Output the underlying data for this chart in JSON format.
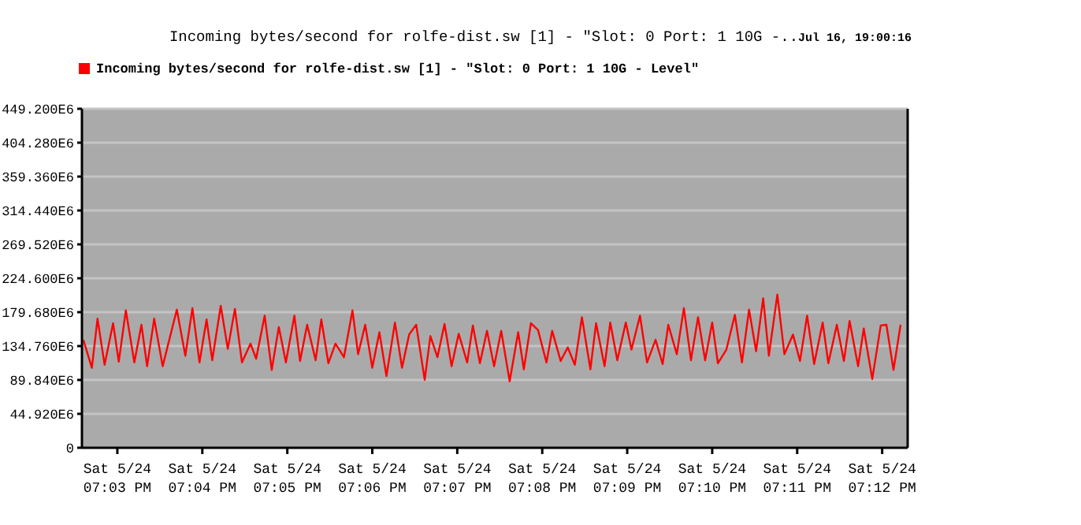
{
  "chart_data": {
    "type": "line",
    "title": "Incoming bytes/second for rolfe-dist.sw [1] - \"Slot: 0 Port: 1 10G -..",
    "annotations": [
      "Jul 16, 19:00:16"
    ],
    "x": [
      "--05-24T19:02:36",
      "--05-24T19:02:42",
      "--05-24T19:02:46",
      "--05-24T19:02:51",
      "--05-24T19:02:57",
      "--05-24T19:03:01",
      "--05-24T19:03:06",
      "--05-24T19:03:12",
      "--05-24T19:03:17",
      "--05-24T19:03:21",
      "--05-24T19:03:26",
      "--05-24T19:03:32",
      "--05-24T19:03:42",
      "--05-24T19:03:48",
      "--05-24T19:03:53",
      "--05-24T19:03:58",
      "--05-24T19:04:03",
      "--05-24T19:04:07",
      "--05-24T19:04:13",
      "--05-24T19:04:18",
      "--05-24T19:04:23",
      "--05-24T19:04:28",
      "--05-24T19:04:34",
      "--05-24T19:04:38",
      "--05-24T19:04:44",
      "--05-24T19:04:49",
      "--05-24T19:04:54",
      "--05-24T19:04:59",
      "--05-24T19:05:05",
      "--05-24T19:05:09",
      "--05-24T19:05:14",
      "--05-24T19:05:20",
      "--05-24T19:05:24",
      "--05-24T19:05:29",
      "--05-24T19:05:34",
      "--05-24T19:05:40",
      "--05-24T19:05:46",
      "--05-24T19:05:50",
      "--05-24T19:05:55",
      "--05-24T19:06:00",
      "--05-24T19:06:05",
      "--05-24T19:06:10",
      "--05-24T19:06:16",
      "--05-24T19:06:21",
      "--05-24T19:06:26",
      "--05-24T19:06:31",
      "--05-24T19:06:37",
      "--05-24T19:06:41",
      "--05-24T19:06:46",
      "--05-24T19:06:51",
      "--05-24T19:06:56",
      "--05-24T19:07:01",
      "--05-24T19:07:07",
      "--05-24T19:07:11",
      "--05-24T19:07:16",
      "--05-24T19:07:21",
      "--05-24T19:07:26",
      "--05-24T19:07:31",
      "--05-24T19:07:37",
      "--05-24T19:07:43",
      "--05-24T19:07:47",
      "--05-24T19:07:52",
      "--05-24T19:07:57",
      "--05-24T19:08:03",
      "--05-24T19:08:07",
      "--05-24T19:08:13",
      "--05-24T19:08:18",
      "--05-24T19:08:23",
      "--05-24T19:08:28",
      "--05-24T19:08:34",
      "--05-24T19:08:38",
      "--05-24T19:08:44",
      "--05-24T19:08:48",
      "--05-24T19:08:53",
      "--05-24T19:08:59",
      "--05-24T19:09:03",
      "--05-24T19:09:09",
      "--05-24T19:09:14",
      "--05-24T19:09:20",
      "--05-24T19:09:25",
      "--05-24T19:09:29",
      "--05-24T19:09:35",
      "--05-24T19:09:40",
      "--05-24T19:09:45",
      "--05-24T19:09:50",
      "--05-24T19:09:55",
      "--05-24T19:10:00",
      "--05-24T19:10:04",
      "--05-24T19:10:10",
      "--05-24T19:10:16",
      "--05-24T19:10:21",
      "--05-24T19:10:26",
      "--05-24T19:10:31",
      "--05-24T19:10:36",
      "--05-24T19:10:40",
      "--05-24T19:10:46",
      "--05-24T19:10:51",
      "--05-24T19:10:57",
      "--05-24T19:11:02",
      "--05-24T19:11:07",
      "--05-24T19:11:12",
      "--05-24T19:11:18",
      "--05-24T19:11:22",
      "--05-24T19:11:28",
      "--05-24T19:11:33",
      "--05-24T19:11:37",
      "--05-24T19:11:43",
      "--05-24T19:11:47",
      "--05-24T19:11:53",
      "--05-24T19:11:59",
      "--05-24T19:12:03",
      "--05-24T19:12:08",
      "--05-24T19:12:13"
    ],
    "series": [
      {
        "name": "Incoming bytes/second for rolfe-dist.sw [1] - \"Slot: 0 Port: 1 10G - Level\"",
        "color": "#ff0000",
        "values": [
          143000000,
          106000000,
          171000000,
          110000000,
          165000000,
          114000000,
          182000000,
          113000000,
          163000000,
          108000000,
          171000000,
          108000000,
          183000000,
          122000000,
          185000000,
          113000000,
          170000000,
          116000000,
          188000000,
          131000000,
          184000000,
          113000000,
          138000000,
          118000000,
          175000000,
          103000000,
          160000000,
          113000000,
          175000000,
          115000000,
          163000000,
          116000000,
          170000000,
          112000000,
          138000000,
          120000000,
          182000000,
          124000000,
          163000000,
          106000000,
          153000000,
          95000000,
          166000000,
          106000000,
          150000000,
          163000000,
          90000000,
          148000000,
          120000000,
          164000000,
          108000000,
          151000000,
          113000000,
          162000000,
          112000000,
          155000000,
          108000000,
          155000000,
          88000000,
          153000000,
          104000000,
          165000000,
          156000000,
          113000000,
          155000000,
          115000000,
          133000000,
          110000000,
          173000000,
          104000000,
          165000000,
          108000000,
          166000000,
          116000000,
          166000000,
          130000000,
          175000000,
          113000000,
          143000000,
          111000000,
          163000000,
          124000000,
          185000000,
          116000000,
          173000000,
          116000000,
          166000000,
          112000000,
          130000000,
          176000000,
          113000000,
          183000000,
          128000000,
          198000000,
          122000000,
          203000000,
          124000000,
          150000000,
          115000000,
          175000000,
          111000000,
          166000000,
          112000000,
          163000000,
          115000000,
          168000000,
          108000000,
          158000000,
          91000000,
          162000000,
          163000000,
          103000000,
          163000000
        ]
      }
    ],
    "xlim": [
      "--05-24T19:02:35",
      "--05-24T19:12:18"
    ],
    "xticks": [
      {
        "value": "--05-24T19:03",
        "label": "Sat 5/24\n07:03 PM"
      },
      {
        "value": "--05-24T19:04",
        "label": "Sat 5/24\n07:04 PM"
      },
      {
        "value": "--05-24T19:05",
        "label": "Sat 5/24\n07:05 PM"
      },
      {
        "value": "--05-24T19:06",
        "label": "Sat 5/24\n07:06 PM"
      },
      {
        "value": "--05-24T19:07",
        "label": "Sat 5/24\n07:07 PM"
      },
      {
        "value": "--05-24T19:08",
        "label": "Sat 5/24\n07:08 PM"
      },
      {
        "value": "--05-24T19:09",
        "label": "Sat 5/24\n07:09 PM"
      },
      {
        "value": "--05-24T19:10",
        "label": "Sat 5/24\n07:10 PM"
      },
      {
        "value": "--05-24T19:11",
        "label": "Sat 5/24\n07:11 PM"
      },
      {
        "value": "--05-24T19:12",
        "label": "Sat 5/24\n07:12 PM"
      }
    ],
    "ylim": [
      0,
      449200000
    ],
    "yticks": [
      0,
      {
        "value": 44920000,
        "label": "44.920E6"
      },
      {
        "value": 89840000,
        "label": "89.840E6"
      },
      {
        "value": 134760000,
        "label": "134.760E6"
      },
      {
        "value": 179680000,
        "label": "179.680E6"
      },
      {
        "value": 224600000,
        "label": "224.600E6"
      },
      {
        "value": 269520000,
        "label": "269.520E6"
      },
      {
        "value": 314440000,
        "label": "314.440E6"
      },
      {
        "value": 359360000,
        "label": "359.360E6"
      },
      {
        "value": 404280000,
        "label": "404.280E6"
      },
      {
        "value": 449200000,
        "label": "449.200E6"
      }
    ],
    "grid": "y",
    "legend": "top left",
    "marker": "none",
    "line_style": "solid"
  }
}
